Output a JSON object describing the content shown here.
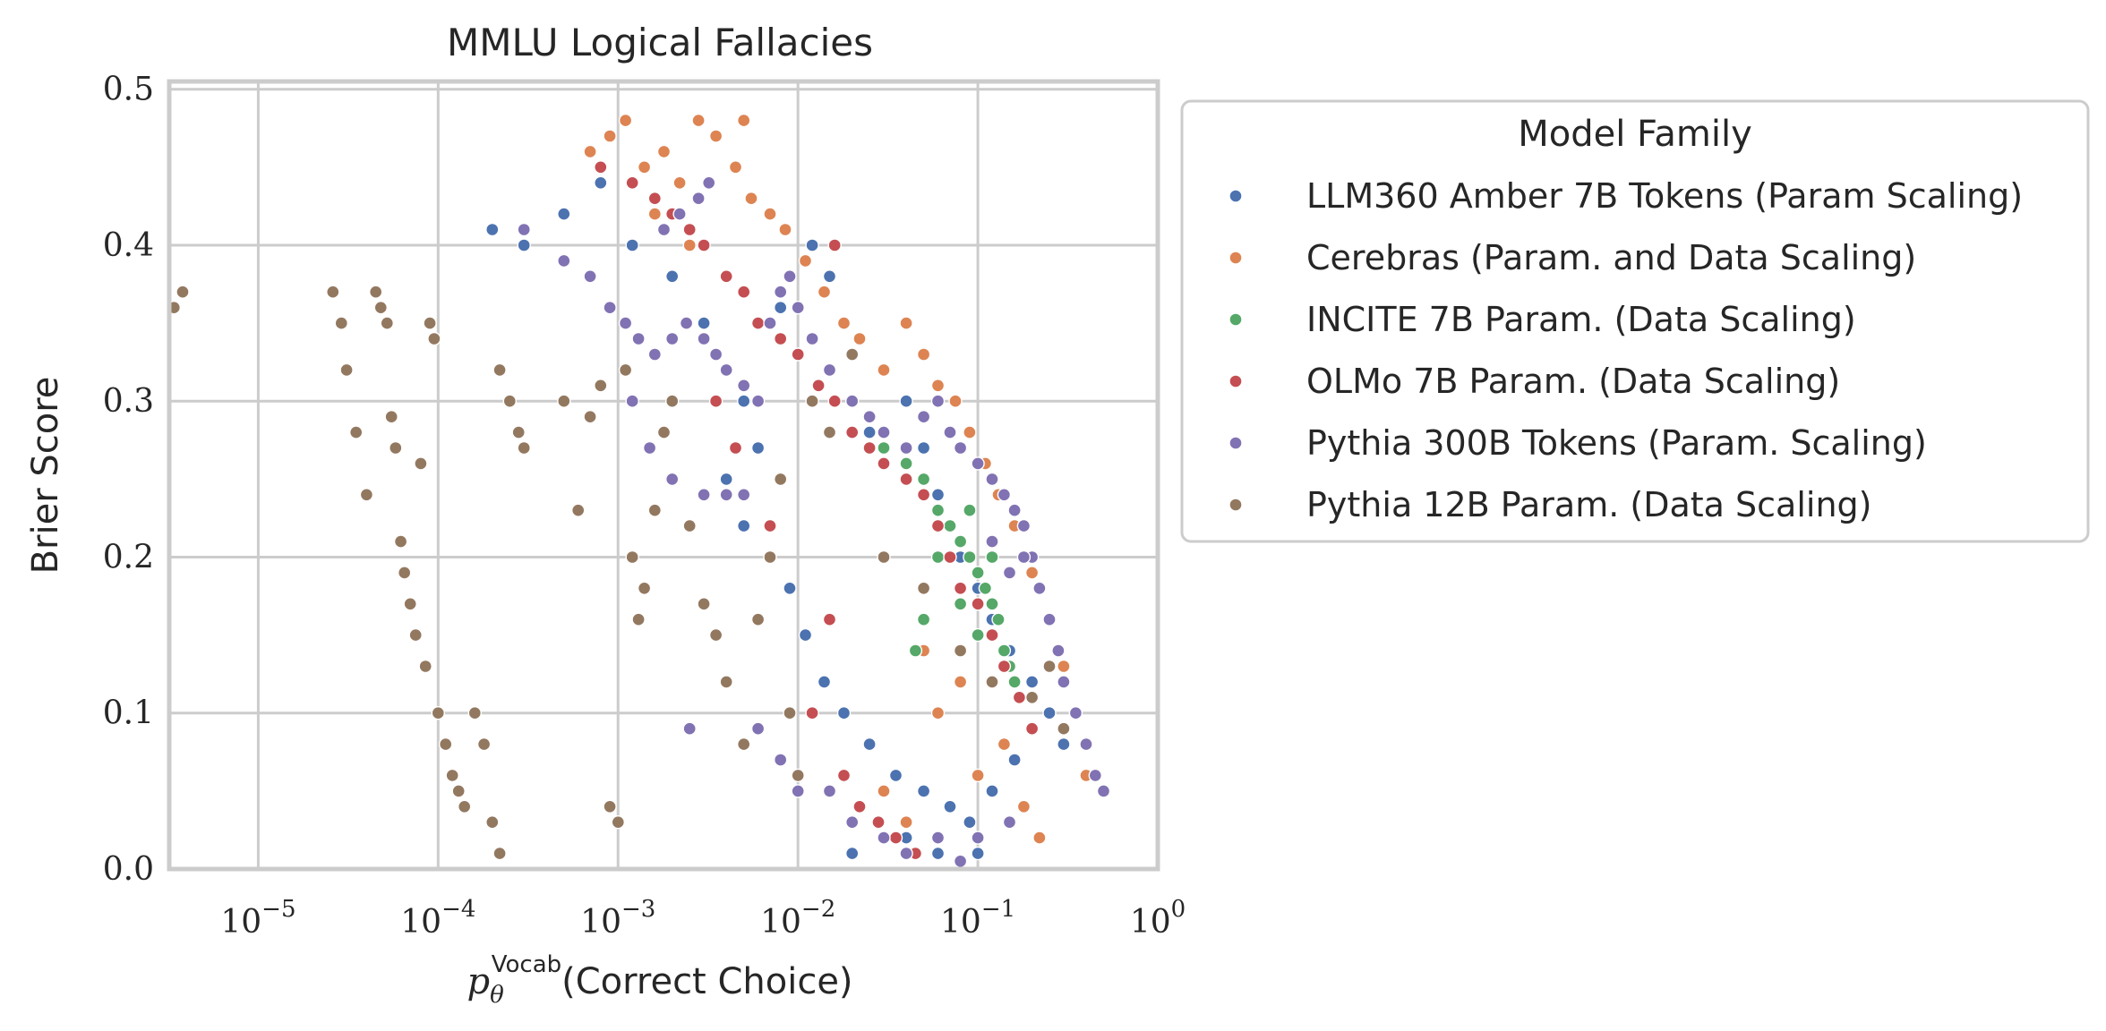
{
  "chart_data": {
    "type": "scatter",
    "title": "MMLU Logical Fallacies",
    "xlabel": {
      "symbol": "p",
      "subscript": "θ",
      "superscript": "Vocab",
      "text": "(Correct Choice)"
    },
    "ylabel": "Brier Score",
    "xscale": "log",
    "xlim": [
      3.2e-06,
      1.0
    ],
    "ylim": [
      0.0,
      0.505
    ],
    "x_ticks": [
      {
        "value": 1e-05,
        "base": "10",
        "exp": "−5"
      },
      {
        "value": 0.0001,
        "base": "10",
        "exp": "−4"
      },
      {
        "value": 0.001,
        "base": "10",
        "exp": "−3"
      },
      {
        "value": 0.01,
        "base": "10",
        "exp": "−2"
      },
      {
        "value": 0.1,
        "base": "10",
        "exp": "−1"
      },
      {
        "value": 1,
        "base": "10",
        "exp": "0"
      }
    ],
    "y_ticks": [
      {
        "value": 0.0,
        "label": "0.0"
      },
      {
        "value": 0.1,
        "label": "0.1"
      },
      {
        "value": 0.2,
        "label": "0.2"
      },
      {
        "value": 0.3,
        "label": "0.3"
      },
      {
        "value": 0.4,
        "label": "0.4"
      },
      {
        "value": 0.5,
        "label": "0.5"
      }
    ],
    "grid": true,
    "legend": {
      "title": "Model Family",
      "placement": "outside-right"
    },
    "series": [
      {
        "name": "LLM360 Amber 7B Tokens (Param Scaling)",
        "color": "#4c72b0",
        "points": [
          [
            0.0002,
            0.41
          ],
          [
            0.0003,
            0.4
          ],
          [
            0.0005,
            0.42
          ],
          [
            0.0008,
            0.44
          ],
          [
            0.0012,
            0.4
          ],
          [
            0.002,
            0.38
          ],
          [
            0.003,
            0.35
          ],
          [
            0.004,
            0.32
          ],
          [
            0.005,
            0.3
          ],
          [
            0.006,
            0.27
          ],
          [
            0.008,
            0.36
          ],
          [
            0.01,
            0.33
          ],
          [
            0.012,
            0.4
          ],
          [
            0.015,
            0.38
          ],
          [
            0.02,
            0.3
          ],
          [
            0.025,
            0.28
          ],
          [
            0.03,
            0.26
          ],
          [
            0.04,
            0.3
          ],
          [
            0.05,
            0.27
          ],
          [
            0.06,
            0.24
          ],
          [
            0.07,
            0.22
          ],
          [
            0.08,
            0.2
          ],
          [
            0.1,
            0.18
          ],
          [
            0.12,
            0.16
          ],
          [
            0.15,
            0.14
          ],
          [
            0.2,
            0.12
          ],
          [
            0.25,
            0.1
          ],
          [
            0.3,
            0.08
          ],
          [
            0.004,
            0.25
          ],
          [
            0.005,
            0.22
          ],
          [
            0.007,
            0.2
          ],
          [
            0.009,
            0.18
          ],
          [
            0.011,
            0.15
          ],
          [
            0.014,
            0.12
          ],
          [
            0.018,
            0.1
          ],
          [
            0.025,
            0.08
          ],
          [
            0.035,
            0.06
          ],
          [
            0.05,
            0.05
          ],
          [
            0.07,
            0.04
          ],
          [
            0.09,
            0.03
          ],
          [
            0.12,
            0.05
          ],
          [
            0.16,
            0.07
          ],
          [
            0.02,
            0.01
          ],
          [
            0.04,
            0.02
          ],
          [
            0.06,
            0.01
          ],
          [
            0.1,
            0.01
          ]
        ]
      },
      {
        "name": "Cerebras (Param. and Data Scaling)",
        "color": "#dd8452",
        "points": [
          [
            0.0007,
            0.46
          ],
          [
            0.0009,
            0.47
          ],
          [
            0.0011,
            0.48
          ],
          [
            0.0014,
            0.45
          ],
          [
            0.0018,
            0.46
          ],
          [
            0.0022,
            0.44
          ],
          [
            0.0028,
            0.48
          ],
          [
            0.0035,
            0.47
          ],
          [
            0.0045,
            0.45
          ],
          [
            0.0055,
            0.43
          ],
          [
            0.007,
            0.42
          ],
          [
            0.0085,
            0.41
          ],
          [
            0.011,
            0.39
          ],
          [
            0.014,
            0.37
          ],
          [
            0.018,
            0.35
          ],
          [
            0.022,
            0.34
          ],
          [
            0.03,
            0.32
          ],
          [
            0.04,
            0.35
          ],
          [
            0.05,
            0.33
          ],
          [
            0.06,
            0.31
          ],
          [
            0.075,
            0.3
          ],
          [
            0.09,
            0.28
          ],
          [
            0.11,
            0.26
          ],
          [
            0.13,
            0.24
          ],
          [
            0.16,
            0.22
          ],
          [
            0.2,
            0.19
          ],
          [
            0.25,
            0.16
          ],
          [
            0.3,
            0.13
          ],
          [
            0.35,
            0.1
          ],
          [
            0.4,
            0.06
          ],
          [
            0.1,
            0.06
          ],
          [
            0.14,
            0.08
          ],
          [
            0.18,
            0.04
          ],
          [
            0.22,
            0.02
          ],
          [
            0.08,
            0.12
          ],
          [
            0.06,
            0.1
          ],
          [
            0.05,
            0.14
          ],
          [
            0.04,
            0.03
          ],
          [
            0.03,
            0.05
          ],
          [
            0.0016,
            0.42
          ],
          [
            0.0025,
            0.4
          ],
          [
            0.005,
            0.48
          ]
        ]
      },
      {
        "name": "INCITE 7B Param. (Data Scaling)",
        "color": "#55a868",
        "points": [
          [
            0.03,
            0.27
          ],
          [
            0.04,
            0.26
          ],
          [
            0.05,
            0.25
          ],
          [
            0.06,
            0.23
          ],
          [
            0.07,
            0.22
          ],
          [
            0.08,
            0.21
          ],
          [
            0.09,
            0.2
          ],
          [
            0.1,
            0.19
          ],
          [
            0.11,
            0.18
          ],
          [
            0.12,
            0.17
          ],
          [
            0.13,
            0.16
          ],
          [
            0.14,
            0.14
          ],
          [
            0.15,
            0.13
          ],
          [
            0.16,
            0.12
          ],
          [
            0.1,
            0.15
          ],
          [
            0.08,
            0.17
          ],
          [
            0.06,
            0.2
          ],
          [
            0.05,
            0.16
          ],
          [
            0.045,
            0.14
          ],
          [
            0.12,
            0.2
          ],
          [
            0.09,
            0.23
          ]
        ]
      },
      {
        "name": "OLMo 7B Param. (Data Scaling)",
        "color": "#c44e52",
        "points": [
          [
            0.0008,
            0.45
          ],
          [
            0.0012,
            0.44
          ],
          [
            0.0016,
            0.43
          ],
          [
            0.002,
            0.42
          ],
          [
            0.0025,
            0.41
          ],
          [
            0.003,
            0.4
          ],
          [
            0.004,
            0.38
          ],
          [
            0.005,
            0.37
          ],
          [
            0.006,
            0.35
          ],
          [
            0.008,
            0.34
          ],
          [
            0.01,
            0.33
          ],
          [
            0.013,
            0.31
          ],
          [
            0.016,
            0.3
          ],
          [
            0.02,
            0.28
          ],
          [
            0.025,
            0.27
          ],
          [
            0.03,
            0.26
          ],
          [
            0.04,
            0.25
          ],
          [
            0.05,
            0.24
          ],
          [
            0.06,
            0.22
          ],
          [
            0.07,
            0.2
          ],
          [
            0.08,
            0.18
          ],
          [
            0.1,
            0.17
          ],
          [
            0.12,
            0.15
          ],
          [
            0.14,
            0.13
          ],
          [
            0.17,
            0.11
          ],
          [
            0.2,
            0.09
          ],
          [
            0.015,
            0.16
          ],
          [
            0.012,
            0.1
          ],
          [
            0.018,
            0.06
          ],
          [
            0.022,
            0.04
          ],
          [
            0.028,
            0.03
          ],
          [
            0.035,
            0.02
          ],
          [
            0.045,
            0.01
          ],
          [
            0.016,
            0.4
          ],
          [
            0.0035,
            0.3
          ],
          [
            0.0045,
            0.27
          ],
          [
            0.007,
            0.22
          ]
        ]
      },
      {
        "name": "Pythia 300B Tokens (Param. Scaling)",
        "color": "#8172b3",
        "points": [
          [
            0.0003,
            0.41
          ],
          [
            0.0005,
            0.39
          ],
          [
            0.0007,
            0.38
          ],
          [
            0.0009,
            0.36
          ],
          [
            0.0011,
            0.35
          ],
          [
            0.0013,
            0.34
          ],
          [
            0.0016,
            0.33
          ],
          [
            0.002,
            0.34
          ],
          [
            0.0024,
            0.35
          ],
          [
            0.003,
            0.34
          ],
          [
            0.0035,
            0.33
          ],
          [
            0.004,
            0.32
          ],
          [
            0.005,
            0.31
          ],
          [
            0.006,
            0.3
          ],
          [
            0.007,
            0.35
          ],
          [
            0.008,
            0.37
          ],
          [
            0.009,
            0.38
          ],
          [
            0.01,
            0.36
          ],
          [
            0.012,
            0.34
          ],
          [
            0.015,
            0.32
          ],
          [
            0.02,
            0.3
          ],
          [
            0.025,
            0.29
          ],
          [
            0.03,
            0.28
          ],
          [
            0.04,
            0.27
          ],
          [
            0.05,
            0.29
          ],
          [
            0.06,
            0.3
          ],
          [
            0.07,
            0.28
          ],
          [
            0.08,
            0.27
          ],
          [
            0.1,
            0.26
          ],
          [
            0.12,
            0.25
          ],
          [
            0.14,
            0.24
          ],
          [
            0.16,
            0.23
          ],
          [
            0.18,
            0.22
          ],
          [
            0.2,
            0.2
          ],
          [
            0.22,
            0.18
          ],
          [
            0.25,
            0.16
          ],
          [
            0.28,
            0.14
          ],
          [
            0.3,
            0.12
          ],
          [
            0.35,
            0.1
          ],
          [
            0.4,
            0.08
          ],
          [
            0.45,
            0.06
          ],
          [
            0.5,
            0.05
          ],
          [
            0.0018,
            0.41
          ],
          [
            0.0022,
            0.42
          ],
          [
            0.0028,
            0.43
          ],
          [
            0.0032,
            0.44
          ],
          [
            0.0012,
            0.3
          ],
          [
            0.0015,
            0.27
          ],
          [
            0.002,
            0.25
          ],
          [
            0.003,
            0.24
          ],
          [
            0.004,
            0.24
          ],
          [
            0.005,
            0.24
          ],
          [
            0.006,
            0.09
          ],
          [
            0.008,
            0.07
          ],
          [
            0.01,
            0.05
          ],
          [
            0.015,
            0.05
          ],
          [
            0.02,
            0.03
          ],
          [
            0.03,
            0.02
          ],
          [
            0.04,
            0.01
          ],
          [
            0.06,
            0.02
          ],
          [
            0.08,
            0.005
          ],
          [
            0.1,
            0.02
          ],
          [
            0.15,
            0.03
          ],
          [
            0.15,
            0.19
          ],
          [
            0.18,
            0.2
          ],
          [
            0.12,
            0.21
          ],
          [
            0.0025,
            0.09
          ]
        ]
      },
      {
        "name": "Pythia 12B Param. (Data Scaling)",
        "color": "#937860",
        "points": [
          [
            3.4e-06,
            0.36
          ],
          [
            3.8e-06,
            0.37
          ],
          [
            2.6e-05,
            0.37
          ],
          [
            2.9e-05,
            0.35
          ],
          [
            3.1e-05,
            0.32
          ],
          [
            3.5e-05,
            0.28
          ],
          [
            4e-05,
            0.24
          ],
          [
            4.5e-05,
            0.37
          ],
          [
            4.8e-05,
            0.36
          ],
          [
            5.2e-05,
            0.35
          ],
          [
            5.5e-05,
            0.29
          ],
          [
            5.8e-05,
            0.27
          ],
          [
            6.2e-05,
            0.21
          ],
          [
            6.5e-05,
            0.19
          ],
          [
            7e-05,
            0.17
          ],
          [
            7.5e-05,
            0.15
          ],
          [
            8e-05,
            0.26
          ],
          [
            8.5e-05,
            0.13
          ],
          [
            9e-05,
            0.35
          ],
          [
            9.5e-05,
            0.34
          ],
          [
            0.0001,
            0.1
          ],
          [
            0.00011,
            0.08
          ],
          [
            0.00012,
            0.06
          ],
          [
            0.00013,
            0.05
          ],
          [
            0.00014,
            0.04
          ],
          [
            0.00016,
            0.1
          ],
          [
            0.00018,
            0.08
          ],
          [
            0.0002,
            0.03
          ],
          [
            0.00022,
            0.01
          ],
          [
            0.00022,
            0.32
          ],
          [
            0.00025,
            0.3
          ],
          [
            0.00028,
            0.28
          ],
          [
            0.0003,
            0.27
          ],
          [
            0.0005,
            0.3
          ],
          [
            0.0007,
            0.29
          ],
          [
            0.0009,
            0.04
          ],
          [
            0.001,
            0.03
          ],
          [
            0.0011,
            0.32
          ],
          [
            0.0012,
            0.2
          ],
          [
            0.0014,
            0.18
          ],
          [
            0.0016,
            0.23
          ],
          [
            0.0018,
            0.28
          ],
          [
            0.002,
            0.3
          ],
          [
            0.0025,
            0.22
          ],
          [
            0.003,
            0.17
          ],
          [
            0.0035,
            0.15
          ],
          [
            0.004,
            0.12
          ],
          [
            0.005,
            0.08
          ],
          [
            0.006,
            0.16
          ],
          [
            0.007,
            0.2
          ],
          [
            0.008,
            0.25
          ],
          [
            0.009,
            0.1
          ],
          [
            0.01,
            0.06
          ],
          [
            0.012,
            0.3
          ],
          [
            0.015,
            0.28
          ],
          [
            0.02,
            0.33
          ],
          [
            0.03,
            0.2
          ],
          [
            0.05,
            0.18
          ],
          [
            0.08,
            0.14
          ],
          [
            0.12,
            0.12
          ],
          [
            0.2,
            0.11
          ],
          [
            0.25,
            0.13
          ],
          [
            0.3,
            0.09
          ],
          [
            0.0008,
            0.31
          ],
          [
            0.0006,
            0.23
          ],
          [
            0.0013,
            0.16
          ]
        ]
      }
    ]
  }
}
